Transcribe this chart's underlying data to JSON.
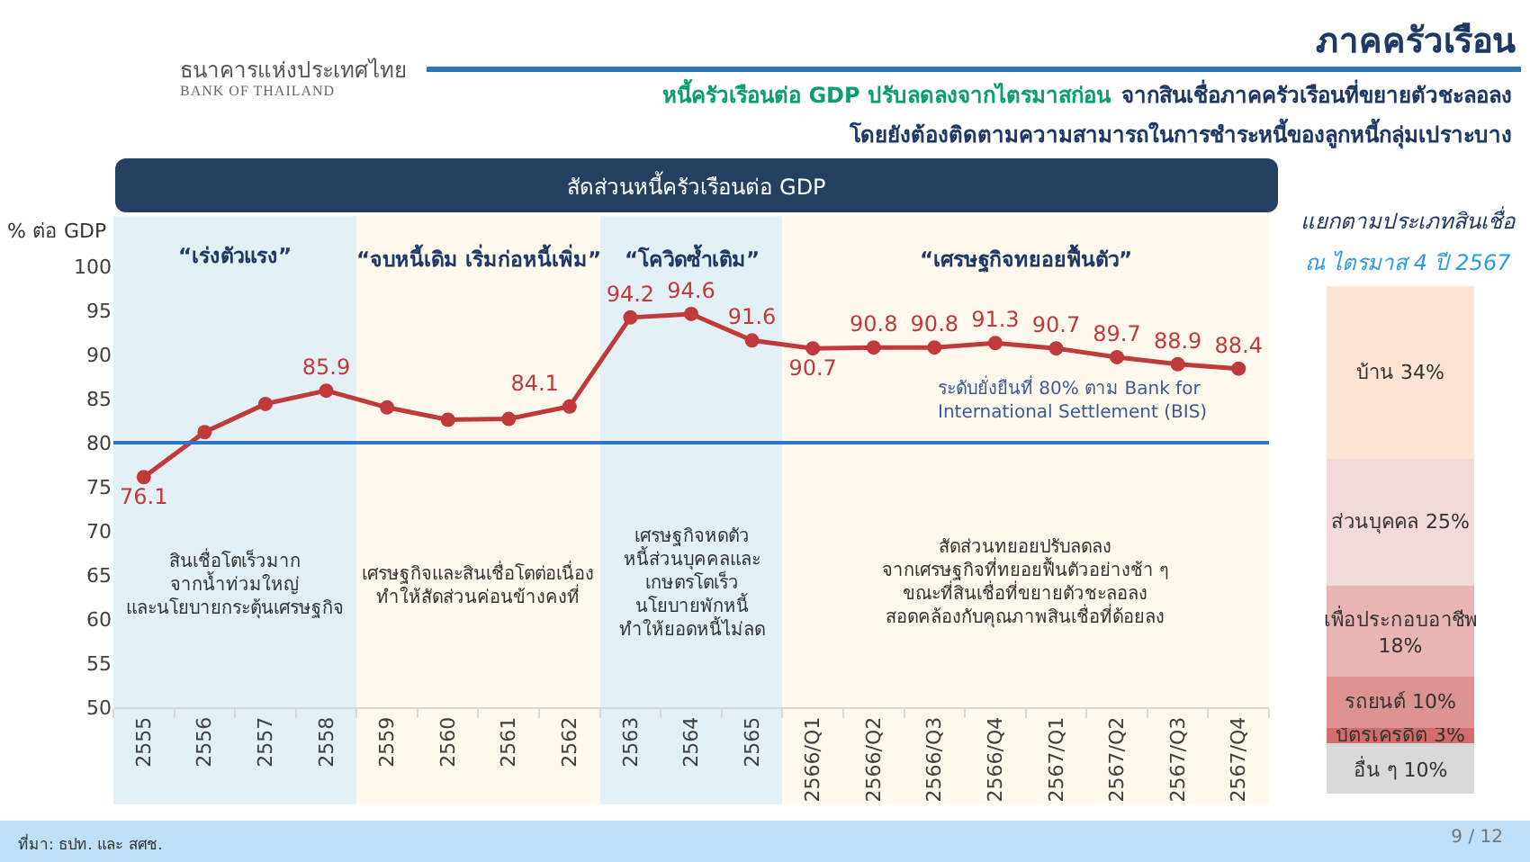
{
  "chart_data": [
    {
      "type": "other",
      "title": "ภาคครัวเรือน",
      "subtitle": "หนี้ครัวเรือนต่อ GDP ปรับลดลงจากไตรมาสก่อน",
      "annotations": [
        "จากสินเชื่อภาคครัวเรือนที่ขยายตัวชะลอลง",
        "โดยยังต้องติดตามความสามารถในการชำระหนี้ของลูกหนี้กลุ่มเปราะบาง",
        "ธนาคารแห่งประเทศไทย",
        "BANK OF THAILAND",
        "ที่มา: ธปท. และ สศช.",
        "9 / 12"
      ]
    },
    {
      "type": "line",
      "title": "สัดส่วนหนี้ครัวเรือนต่อ GDP",
      "ylabel": "% ต่อ GDP",
      "categories": [
        "2555",
        "2556",
        "2557",
        "2558",
        "2559",
        "2560",
        "2561",
        "2562",
        "2563",
        "2564",
        "2565",
        "2566/Q1",
        "2566/Q2",
        "2566/Q3",
        "2566/Q4",
        "2567/Q1",
        "2567/Q2",
        "2567/Q3",
        "2567/Q4"
      ],
      "series": [
        {
          "color": "#c0393b",
          "values": [
            76.1,
            81.2,
            84.4,
            85.9,
            84.0,
            82.6,
            82.7,
            84.1,
            94.2,
            94.6,
            91.6,
            90.7,
            90.8,
            90.8,
            91.3,
            90.7,
            89.7,
            88.9,
            88.4
          ],
          "value_labels": [
            "76.1",
            null,
            null,
            "85.9",
            null,
            null,
            null,
            "84.1",
            "94.2",
            "94.6",
            "91.6",
            "90.7",
            "90.8",
            "90.8",
            "91.3",
            "90.7",
            "89.7",
            "88.9",
            "88.4"
          ]
        }
      ],
      "ylim": [
        50,
        100
      ],
      "yticks": [
        50,
        55,
        60,
        65,
        70,
        75,
        80,
        85,
        90,
        95,
        100
      ],
      "marker": "circle",
      "line_style": "solid",
      "ref_lines": [
        {
          "axis": "y",
          "value": 80,
          "label": "ระดับยั่งยืนที่ 80% ตาม Bank for\nInternational Settlement (BIS)",
          "color": "#2e75c6"
        }
      ],
      "bands": [
        {
          "axis": "x",
          "from": "2555",
          "to": "2558",
          "label": "“เร่งตัวแรง”",
          "color": "#e3f1f7"
        },
        {
          "axis": "x",
          "from": "2559",
          "to": "2562",
          "label": "“จบหนี้เดิม เริ่มก่อหนี้เพิ่ม”",
          "color": "#fef9ec"
        },
        {
          "axis": "x",
          "from": "2563",
          "to": "2565",
          "label": "“โควิดซ้ำเติม”",
          "color": "#e3f1f7"
        },
        {
          "axis": "x",
          "from": "2566/Q1",
          "to": "2567/Q4",
          "label": "“เศรษฐกิจทยอยฟื้นตัว”",
          "color": "#fef9ec"
        }
      ],
      "annotations": [
        "สินเชื่อโตเร็วมาก\nจากน้ำท่วมใหญ่\nและนโยบายกระตุ้นเศรษฐกิจ",
        "เศรษฐกิจและสินเชื่อโตต่อเนื่อง\nทำให้สัดส่วนค่อนข้างคงที่",
        "เศรษฐกิจหดตัว\nหนี้ส่วนบุคคลและ\nเกษตรโตเร็ว\nนโยบายพักหนี้\nทำให้ยอดหนี้ไม่ลด",
        "สัดส่วนทยอยปรับลดลง\nจากเศรษฐกิจที่ทยอยฟื้นตัวอย่างช้า ๆ\nขณะที่สินเชื่อที่ขยายตัวชะลอลง\nสอดคล้องกับคุณภาพสินเชื่อที่ด้อยลง"
      ]
    },
    {
      "type": "bar",
      "stacked": true,
      "title": "แยกตามประเภทสินเชื่อ",
      "subtitle": "ณ ไตรมาส 4 ปี 2567",
      "categories": [
        null
      ],
      "series": [
        {
          "color": "#d9d9d9",
          "values": [
            10
          ],
          "value_labels": [
            "อื่น ๆ 10%"
          ]
        },
        {
          "color": "#d36d6b",
          "values": [
            3
          ],
          "value_labels": [
            "บัตรเครดิต 3%"
          ]
        },
        {
          "color": "#dd9391",
          "values": [
            10
          ],
          "value_labels": [
            "รถยนต์ 10%"
          ]
        },
        {
          "color": "#e8b4b4",
          "values": [
            18
          ],
          "value_labels": [
            "เพื่อประกอบอาชีพ\n18%"
          ]
        },
        {
          "color": "#f2dada",
          "values": [
            25
          ],
          "value_labels": [
            "ส่วนบุคคล 25%"
          ]
        },
        {
          "color": "#fde4d4",
          "values": [
            34
          ],
          "value_labels": [
            "บ้าน 34%"
          ]
        }
      ]
    }
  ]
}
